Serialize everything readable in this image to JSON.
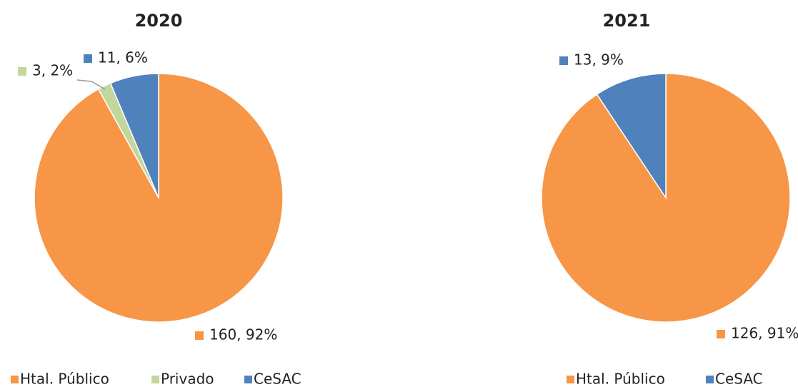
{
  "chart_data": [
    {
      "type": "pie",
      "title": "2020",
      "categories": [
        "Htal. Público",
        "Privado",
        "CeSAC"
      ],
      "values": [
        160,
        3,
        11
      ],
      "value_labels": [
        "160, 92%",
        "3, 2%",
        "11, 6%"
      ],
      "colors": [
        "#f79646",
        "#c3d69b",
        "#4f81bd"
      ]
    },
    {
      "type": "pie",
      "title": "2021",
      "categories": [
        "Htal. Público",
        "CeSAC"
      ],
      "values": [
        126,
        13
      ],
      "value_labels": [
        "126, 91%",
        "13, 9%"
      ],
      "colors": [
        "#f79646",
        "#4f81bd"
      ]
    }
  ]
}
